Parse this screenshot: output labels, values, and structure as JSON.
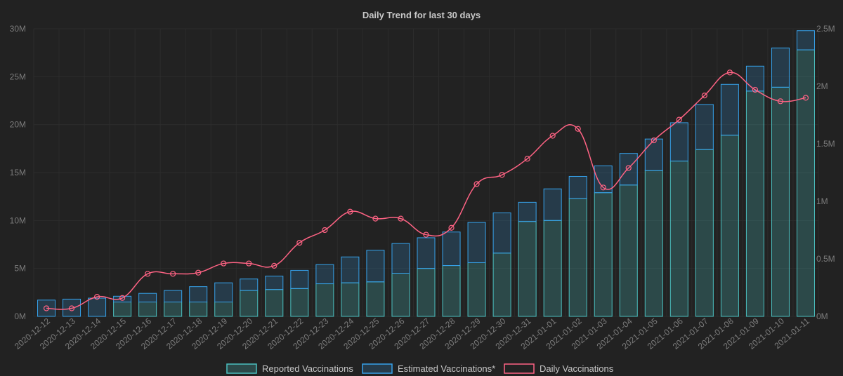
{
  "chart_data": {
    "type": "bar",
    "title": "Daily Trend for last 30 days",
    "categories": [
      "2020-12-12",
      "2020-12-13",
      "2020-12-14",
      "2020-12-15",
      "2020-12-16",
      "2020-12-17",
      "2020-12-18",
      "2020-12-19",
      "2020-12-20",
      "2020-12-21",
      "2020-12-22",
      "2020-12-23",
      "2020-12-24",
      "2020-12-25",
      "2020-12-26",
      "2020-12-27",
      "2020-12-28",
      "2020-12-29",
      "2020-12-30",
      "2020-12-31",
      "2021-01-01",
      "2021-01-02",
      "2021-01-03",
      "2021-01-04",
      "2021-01-05",
      "2021-01-06",
      "2021-01-07",
      "2021-01-08",
      "2021-01-09",
      "2021-01-10",
      "2021-01-11"
    ],
    "stacked": true,
    "series": [
      {
        "name": "Reported Vaccinations",
        "axis": "left",
        "kind": "bar",
        "color": "#4bc0c0",
        "values": [
          0,
          0,
          0,
          1.5,
          1.5,
          1.5,
          1.5,
          1.5,
          2.7,
          2.8,
          2.9,
          3.4,
          3.5,
          3.6,
          4.5,
          5.0,
          5.3,
          5.6,
          6.6,
          9.9,
          10.0,
          12.3,
          12.9,
          13.7,
          15.2,
          16.2,
          17.4,
          18.9,
          23.5,
          23.9,
          27.8
        ]
      },
      {
        "name": "Estimated Vaccinations*",
        "axis": "left",
        "kind": "bar",
        "color": "#36a2eb",
        "values": [
          1.7,
          1.8,
          1.9,
          0.6,
          0.9,
          1.2,
          1.6,
          2.0,
          1.2,
          1.4,
          1.9,
          2.0,
          2.7,
          3.3,
          3.1,
          3.2,
          3.5,
          4.2,
          4.2,
          2.0,
          3.3,
          2.3,
          2.8,
          3.3,
          3.3,
          4.0,
          4.7,
          5.3,
          2.6,
          4.1,
          2.0
        ]
      },
      {
        "name": "Daily Vaccinations",
        "axis": "right",
        "kind": "line",
        "color": "#ff6384",
        "values": [
          0.07,
          0.07,
          0.17,
          0.16,
          0.37,
          0.37,
          0.38,
          0.46,
          0.46,
          0.44,
          0.64,
          0.75,
          0.91,
          0.85,
          0.85,
          0.71,
          0.77,
          1.15,
          1.23,
          1.37,
          1.57,
          1.63,
          1.12,
          1.29,
          1.53,
          1.71,
          1.92,
          2.12,
          1.97,
          1.87,
          1.9
        ]
      }
    ],
    "y_left": {
      "range": [
        0,
        30
      ],
      "unit": "M",
      "ticks": [
        "0M",
        "5M",
        "10M",
        "15M",
        "20M",
        "25M",
        "30M"
      ]
    },
    "y_right": {
      "range": [
        0,
        2.5
      ],
      "unit": "M",
      "ticks": [
        "0M",
        "0.5M",
        "1M",
        "1.5M",
        "2M",
        "2.5M"
      ]
    },
    "legend": {
      "position": "bottom",
      "entries": [
        "Reported Vaccinations",
        "Estimated Vaccinations*",
        "Daily Vaccinations"
      ]
    },
    "grid": true
  }
}
